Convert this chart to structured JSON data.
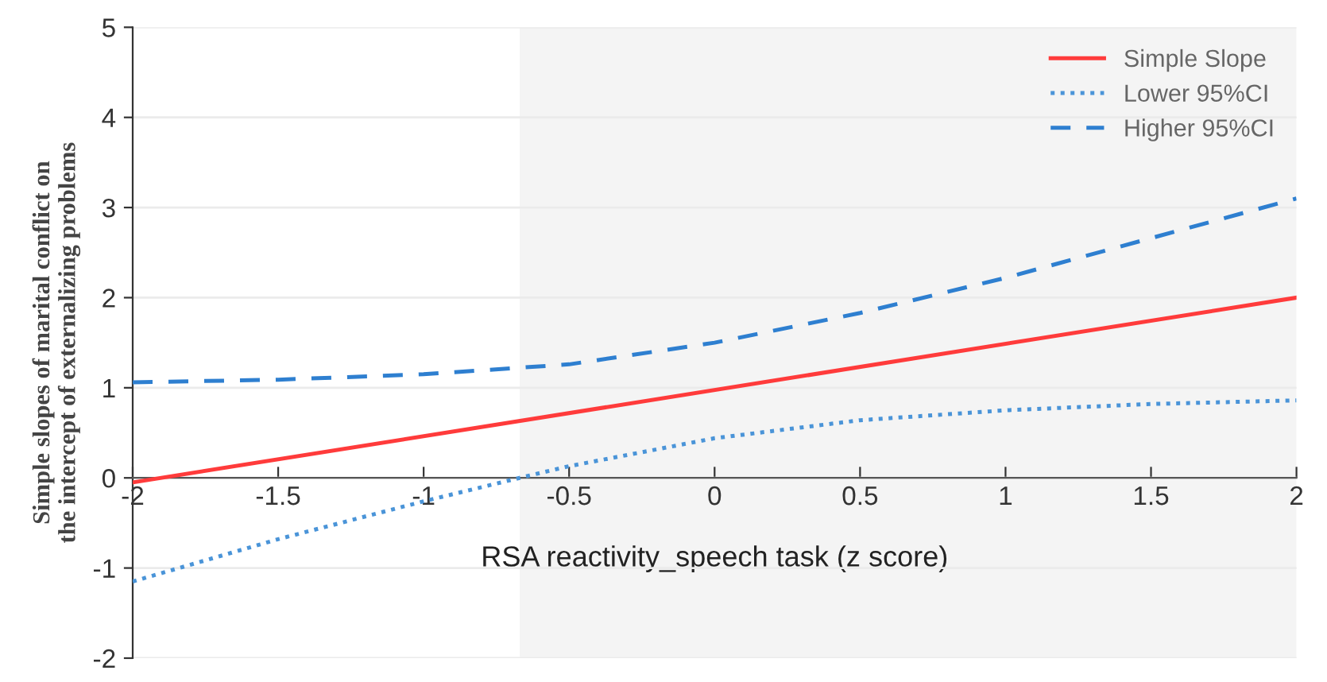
{
  "chart_data": {
    "type": "line",
    "xlabel": "RSA reactivity_speech task (z score)",
    "ylabel": "Simple slopes of marital conflict on\nthe intercept of externalizing problems",
    "xlim": [
      -2,
      2
    ],
    "ylim": [
      -2,
      5
    ],
    "xticks": [
      -2,
      -1.5,
      -1,
      -0.5,
      0,
      0.5,
      1,
      1.5,
      2
    ],
    "yticks": [
      -2,
      -1,
      0,
      1,
      2,
      3,
      4,
      5
    ],
    "grid": "y",
    "legend": "top right",
    "bands": [
      {
        "axis": "x",
        "from": -0.67,
        "to": 2,
        "color": "#f4f4f4"
      }
    ],
    "series": [
      {
        "name": "Simple Slope",
        "color": "#ff3b3b",
        "line_style": "solid",
        "x": [
          -2,
          2
        ],
        "values": [
          -0.05,
          2.0
        ]
      },
      {
        "name": "Lower 95%CI",
        "color": "#4a94d8",
        "line_style": "dotted",
        "x": [
          -2,
          -1.5,
          -1,
          -0.67,
          -0.5,
          0,
          0.5,
          1,
          1.5,
          2
        ],
        "values": [
          -1.15,
          -0.68,
          -0.26,
          0.0,
          0.13,
          0.44,
          0.64,
          0.75,
          0.82,
          0.86
        ]
      },
      {
        "name": "Higher 95%CI",
        "color": "#2e7fd0",
        "line_style": "dashed",
        "x": [
          -2,
          -1.5,
          -1,
          -0.5,
          0,
          0.5,
          1,
          1.5,
          2
        ],
        "values": [
          1.06,
          1.09,
          1.15,
          1.26,
          1.5,
          1.83,
          2.22,
          2.66,
          3.1
        ]
      }
    ]
  }
}
